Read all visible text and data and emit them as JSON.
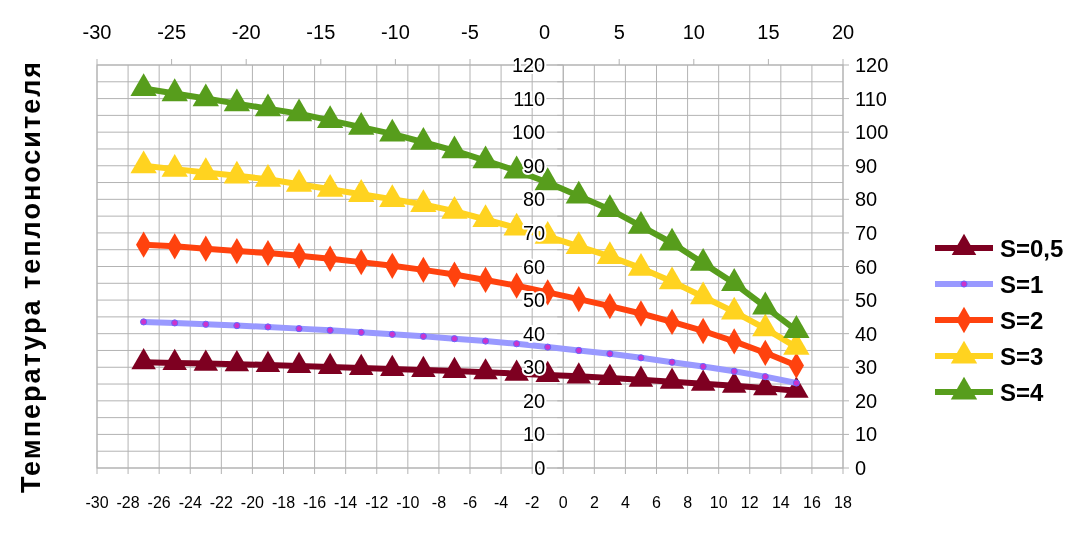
{
  "chart_data": {
    "type": "line",
    "ylabel": "Температура теплоносителя",
    "x": [
      -27,
      -25,
      -23,
      -21,
      -19,
      -17,
      -15,
      -13,
      -11,
      -9,
      -7,
      -5,
      -3,
      -1,
      1,
      3,
      5,
      7,
      9,
      11,
      13,
      15
    ],
    "xlim": [
      -30,
      18
    ],
    "xticks": [
      -30,
      -28,
      -26,
      -24,
      -22,
      -20,
      -18,
      -16,
      -14,
      -12,
      -10,
      -8,
      -6,
      -4,
      -2,
      0,
      2,
      4,
      6,
      8,
      10,
      12,
      14,
      16,
      18
    ],
    "x2lim": [
      -30,
      20
    ],
    "x2ticks": [
      -30,
      -25,
      -20,
      -15,
      -10,
      -5,
      0,
      5,
      10,
      15,
      20
    ],
    "ylim": [
      0,
      120
    ],
    "yticks": [
      0,
      {
        "value": 5,
        "label": null
      },
      10,
      {
        "value": 15,
        "label": null
      },
      20,
      {
        "value": 25,
        "label": null
      },
      30,
      {
        "value": 35,
        "label": null
      },
      40,
      {
        "value": 45,
        "label": null
      },
      50,
      {
        "value": 55,
        "label": null
      },
      60,
      {
        "value": 65,
        "label": null
      },
      70,
      {
        "value": 75,
        "label": null
      },
      80,
      {
        "value": 85,
        "label": null
      },
      90,
      {
        "value": 95,
        "label": null
      },
      100,
      {
        "value": 105,
        "label": null
      },
      110,
      {
        "value": 115,
        "label": null
      },
      120
    ],
    "y2lim": [
      0,
      120
    ],
    "y2ticks": [
      0,
      10,
      20,
      30,
      40,
      50,
      60,
      70,
      80,
      90,
      100,
      110,
      120
    ],
    "grid": true,
    "legend": "right",
    "line_style": "solid",
    "series": [
      {
        "name": "S=0,5",
        "color": "#7e0021",
        "marker": "triangle",
        "values": [
          31.5,
          31.3,
          31.1,
          30.9,
          30.7,
          30.4,
          30.1,
          29.8,
          29.5,
          29.2,
          28.9,
          28.5,
          28.1,
          27.7,
          27.3,
          26.8,
          26.3,
          25.7,
          25.1,
          24.5,
          23.8,
          23
        ]
      },
      {
        "name": "S=1",
        "color": "#9999ff",
        "marker": "circle",
        "values": [
          43.5,
          43.2,
          42.8,
          42.4,
          42,
          41.5,
          41,
          40.4,
          39.8,
          39.2,
          38.5,
          37.8,
          37,
          36,
          35,
          34,
          32.8,
          31.5,
          30.2,
          28.8,
          27.2,
          25.3
        ]
      },
      {
        "name": "S=2",
        "color": "#ff420e",
        "marker": "diamond",
        "values": [
          66.5,
          66,
          65.3,
          64.6,
          64,
          63.2,
          62.3,
          61.3,
          60.2,
          59,
          57.6,
          56,
          54.3,
          52.3,
          50.3,
          48.2,
          46,
          43.5,
          40.8,
          37.7,
          34.3,
          30.5
        ]
      },
      {
        "name": "S=3",
        "color": "#ffd320",
        "marker": "triangle",
        "values": [
          90,
          89,
          88,
          87,
          86,
          84.5,
          83,
          81.5,
          80,
          78.5,
          76.5,
          74,
          71.5,
          69,
          66,
          63,
          59.5,
          55.5,
          51,
          46.5,
          41.5,
          36
        ]
      },
      {
        "name": "S=4",
        "color": "#579d1c",
        "marker": "triangle",
        "values": [
          113,
          111.5,
          110,
          108.5,
          107,
          105.5,
          103.5,
          101.5,
          99.5,
          97,
          94.5,
          91.5,
          88.5,
          85,
          81,
          77,
          72,
          67,
          61,
          55,
          48,
          41
        ]
      }
    ]
  }
}
